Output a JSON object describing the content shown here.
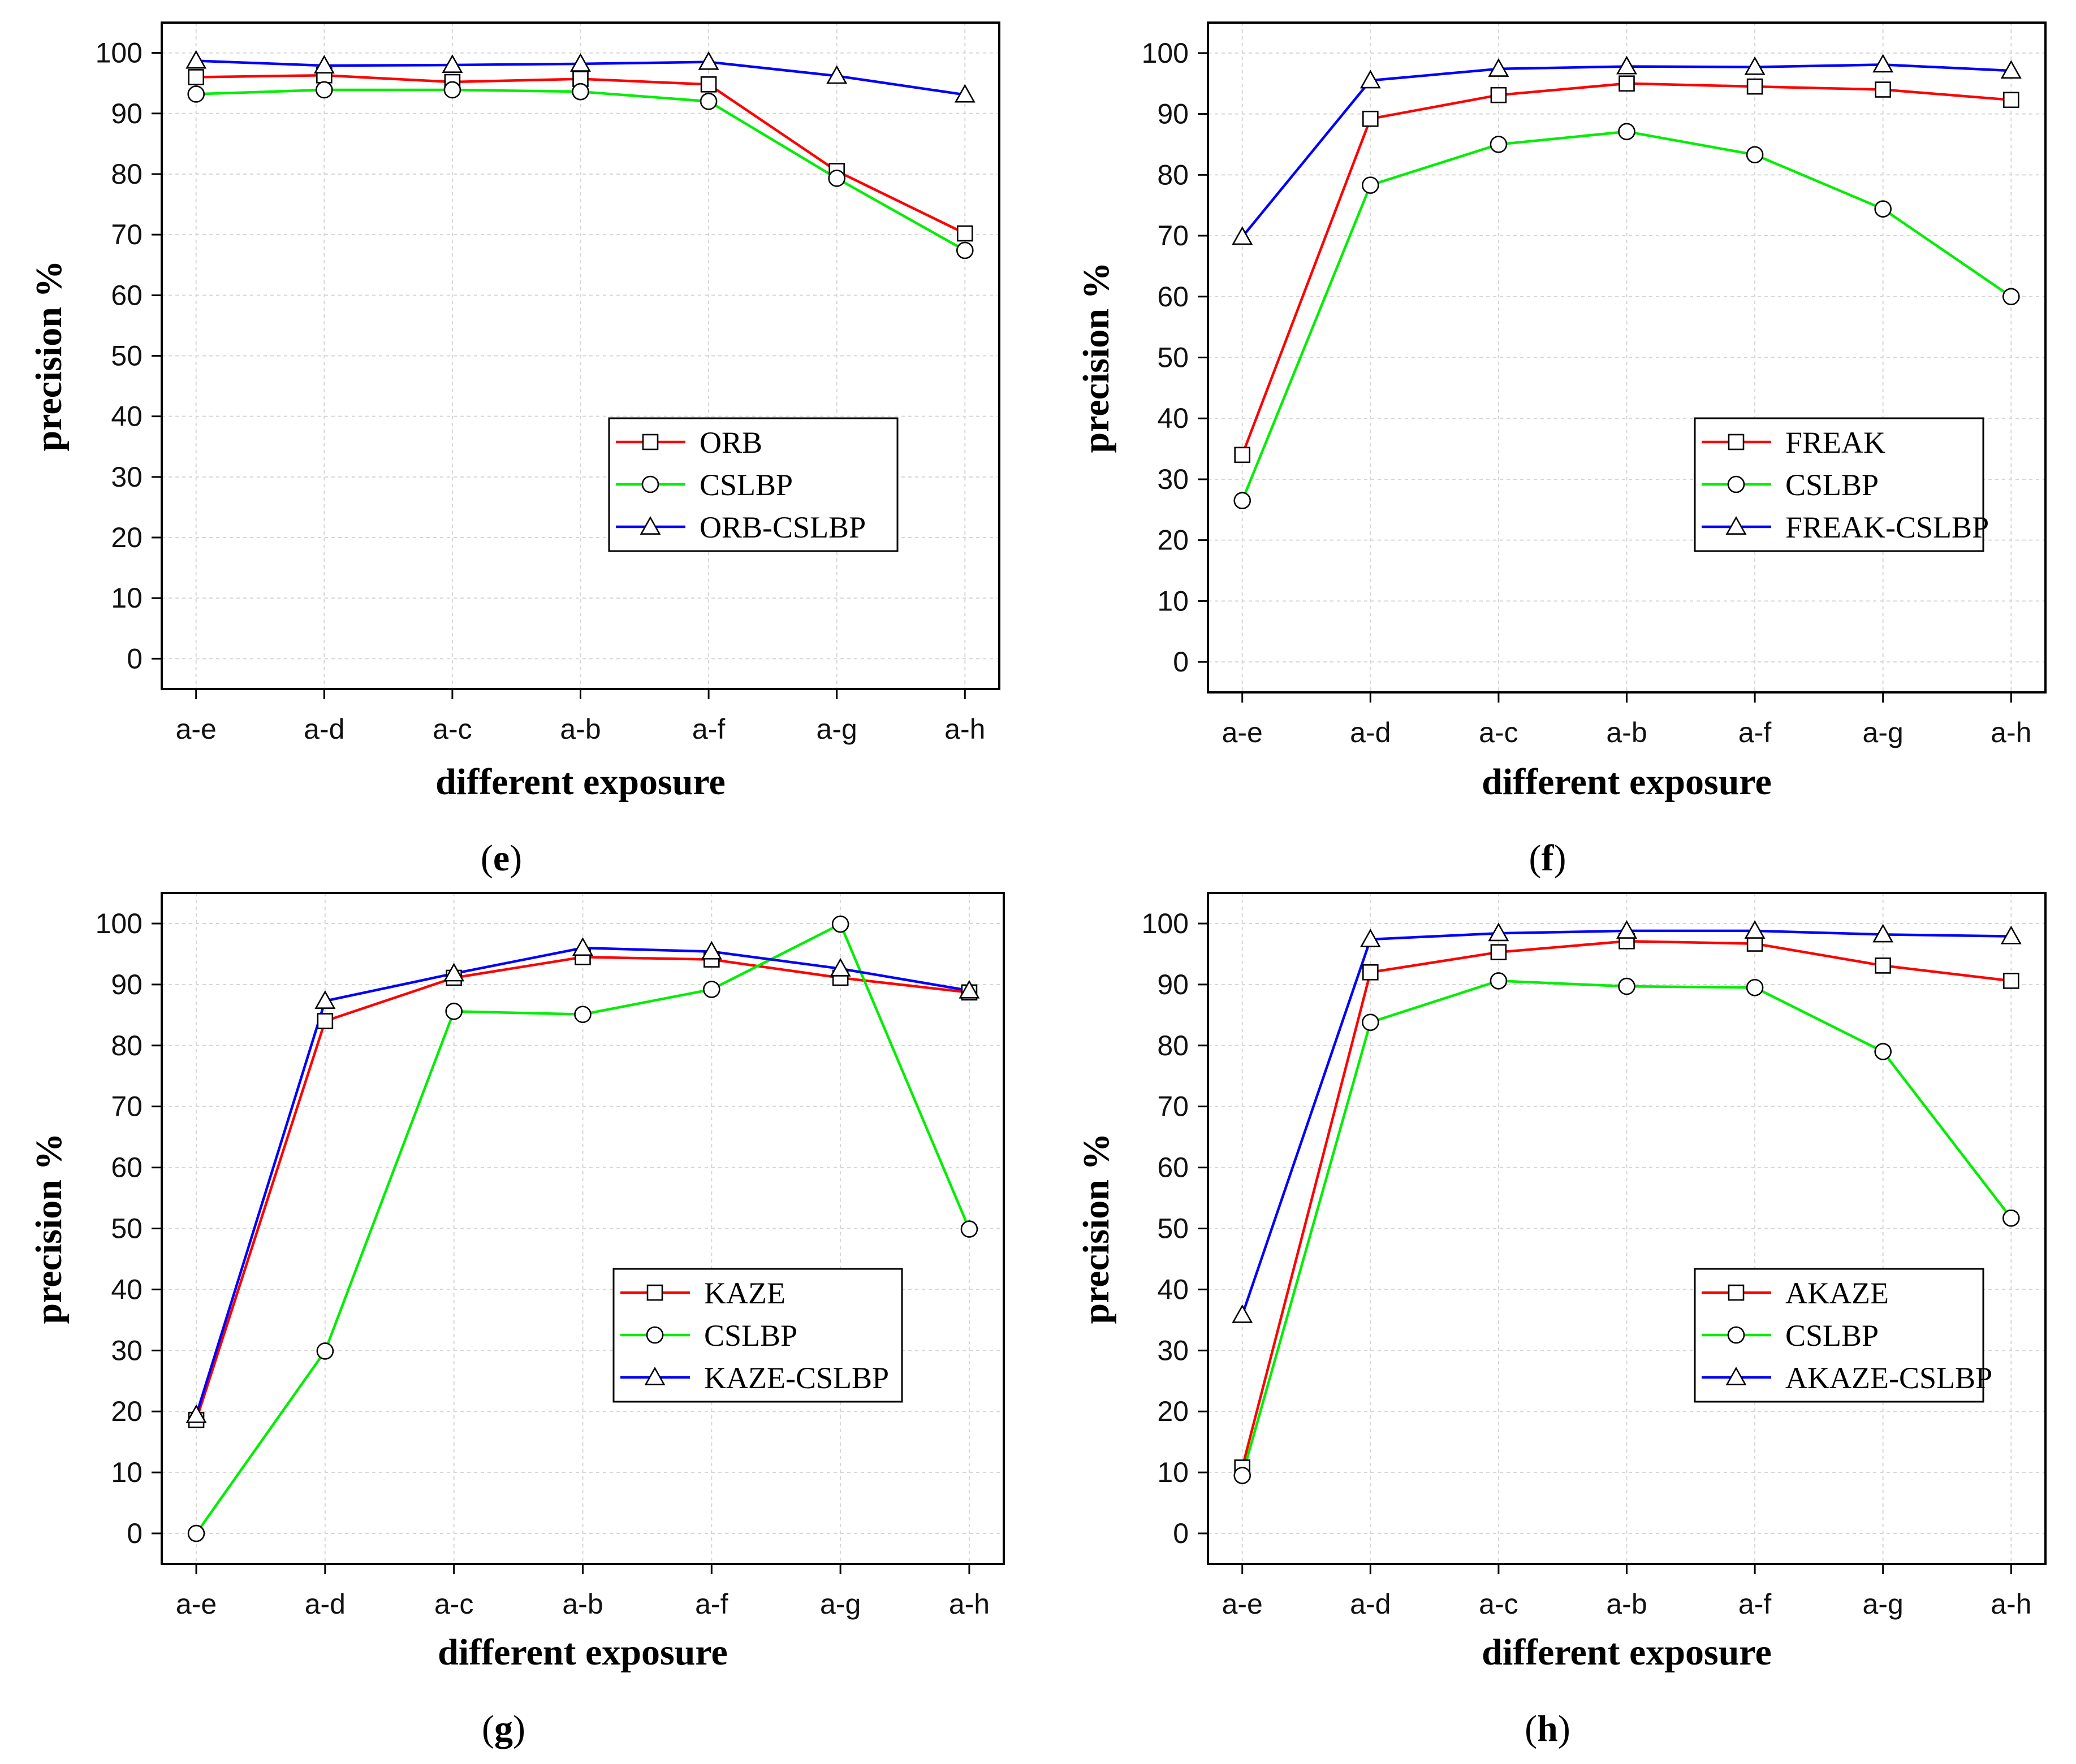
{
  "chart_data": [
    {
      "type": "line",
      "panel_label": "e",
      "categories": [
        "a-e",
        "a-d",
        "a-c",
        "a-b",
        "a-f",
        "a-g",
        "a-h"
      ],
      "series": [
        {
          "name": "ORB",
          "color": "#ff0000",
          "marker": "square",
          "values": [
            96,
            96.3,
            95.2,
            95.7,
            94.8,
            80.5,
            70.2
          ]
        },
        {
          "name": "CSLBP",
          "color": "#00ee00",
          "marker": "circle",
          "values": [
            93.2,
            93.9,
            93.9,
            93.6,
            92,
            79.3,
            67.4
          ]
        },
        {
          "name": "ORB-CSLBP",
          "color": "#0000ff",
          "marker": "triangle",
          "values": [
            98.7,
            97.9,
            98,
            98.2,
            98.5,
            96.2,
            93.1
          ]
        }
      ],
      "title": "",
      "xlabel": "different exposure",
      "ylabel": "precision %",
      "ylim": [
        -5,
        105
      ],
      "yticks": [
        0,
        10,
        20,
        30,
        40,
        50,
        60,
        70,
        80,
        90,
        100
      ],
      "grid": true,
      "legend_position": "bottom-right"
    },
    {
      "type": "line",
      "panel_label": "f",
      "categories": [
        "a-e",
        "a-d",
        "a-c",
        "a-b",
        "a-f",
        "a-g",
        "a-h"
      ],
      "series": [
        {
          "name": "FREAK",
          "color": "#ff0000",
          "marker": "square",
          "values": [
            34,
            89.2,
            93.1,
            95,
            94.5,
            94,
            92.3
          ]
        },
        {
          "name": "CSLBP",
          "color": "#00ee00",
          "marker": "circle",
          "values": [
            26.5,
            78.3,
            85,
            87.1,
            83.3,
            74.4,
            60
          ]
        },
        {
          "name": "FREAK-CSLBP",
          "color": "#0000ff",
          "marker": "triangle",
          "values": [
            69.8,
            95.5,
            97.4,
            97.8,
            97.7,
            98.1,
            97.1
          ]
        }
      ],
      "title": "",
      "xlabel": "different exposure",
      "ylabel": "precision %",
      "ylim": [
        -5,
        105
      ],
      "yticks": [
        0,
        10,
        20,
        30,
        40,
        50,
        60,
        70,
        80,
        90,
        100
      ],
      "grid": true,
      "legend_position": "bottom-right"
    },
    {
      "type": "line",
      "panel_label": "g",
      "categories": [
        "a-e",
        "a-d",
        "a-c",
        "a-b",
        "a-f",
        "a-g",
        "a-h"
      ],
      "series": [
        {
          "name": "KAZE",
          "color": "#ff0000",
          "marker": "square",
          "values": [
            18.6,
            84,
            91.1,
            94.5,
            94.1,
            91.1,
            88.7
          ]
        },
        {
          "name": "CSLBP",
          "color": "#00ee00",
          "marker": "circle",
          "values": [
            0,
            29.9,
            85.6,
            85.1,
            89.2,
            99.9,
            49.9
          ]
        },
        {
          "name": "KAZE-CSLBP",
          "color": "#0000ff",
          "marker": "triangle",
          "values": [
            19.4,
            87.3,
            91.8,
            96,
            95.4,
            92.6,
            89
          ]
        }
      ],
      "title": "",
      "xlabel": "different exposure",
      "ylabel": "precision %",
      "ylim": [
        -5,
        105
      ],
      "yticks": [
        0,
        10,
        20,
        30,
        40,
        50,
        60,
        70,
        80,
        90,
        100
      ],
      "grid": true,
      "legend_position": "bottom-right"
    },
    {
      "type": "line",
      "panel_label": "h",
      "categories": [
        "a-e",
        "a-d",
        "a-c",
        "a-b",
        "a-f",
        "a-g",
        "a-h"
      ],
      "series": [
        {
          "name": "AKAZE",
          "color": "#ff0000",
          "marker": "square",
          "values": [
            10.8,
            92,
            95.3,
            97.1,
            96.7,
            93.1,
            90.6
          ]
        },
        {
          "name": "CSLBP",
          "color": "#00ee00",
          "marker": "circle",
          "values": [
            9.5,
            83.8,
            90.6,
            89.7,
            89.5,
            79,
            51.7
          ]
        },
        {
          "name": "AKAZE-CSLBP",
          "color": "#0000ff",
          "marker": "triangle",
          "values": [
            35.8,
            97.4,
            98.4,
            98.8,
            98.8,
            98.2,
            97.9
          ]
        }
      ],
      "title": "",
      "xlabel": "different exposure",
      "ylabel": "precision %",
      "ylim": [
        -5,
        105
      ],
      "yticks": [
        0,
        10,
        20,
        30,
        40,
        50,
        60,
        70,
        80,
        90,
        100
      ],
      "grid": true,
      "legend_position": "bottom-right"
    }
  ]
}
